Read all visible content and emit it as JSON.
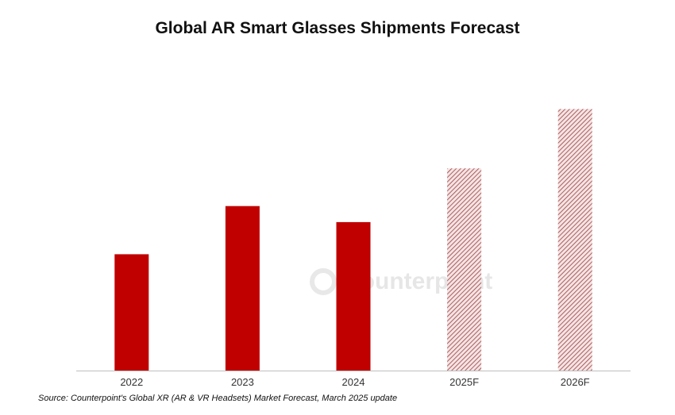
{
  "chart_data": {
    "type": "bar",
    "title": "Global AR Smart Glasses Shipments Forecast",
    "categories": [
      "2022",
      "2023",
      "2024",
      "2025F",
      "2026F"
    ],
    "values": [
      145,
      205,
      185,
      252,
      326
    ],
    "forecast": [
      false,
      false,
      false,
      true,
      true
    ],
    "ylim": [
      0,
      360
    ],
    "grid": false,
    "legend": "none",
    "xlabel": "",
    "ylabel": ""
  },
  "source": "Source: Counterpoint's Global XR (AR & VR Headsets) Market Forecast, March 2025 update",
  "watermark": "Counterpoint",
  "colors": {
    "actual": "#c00000",
    "forecast_hatch": "#a13a3a",
    "axis": "#bfbfbf",
    "text": "#111111"
  }
}
